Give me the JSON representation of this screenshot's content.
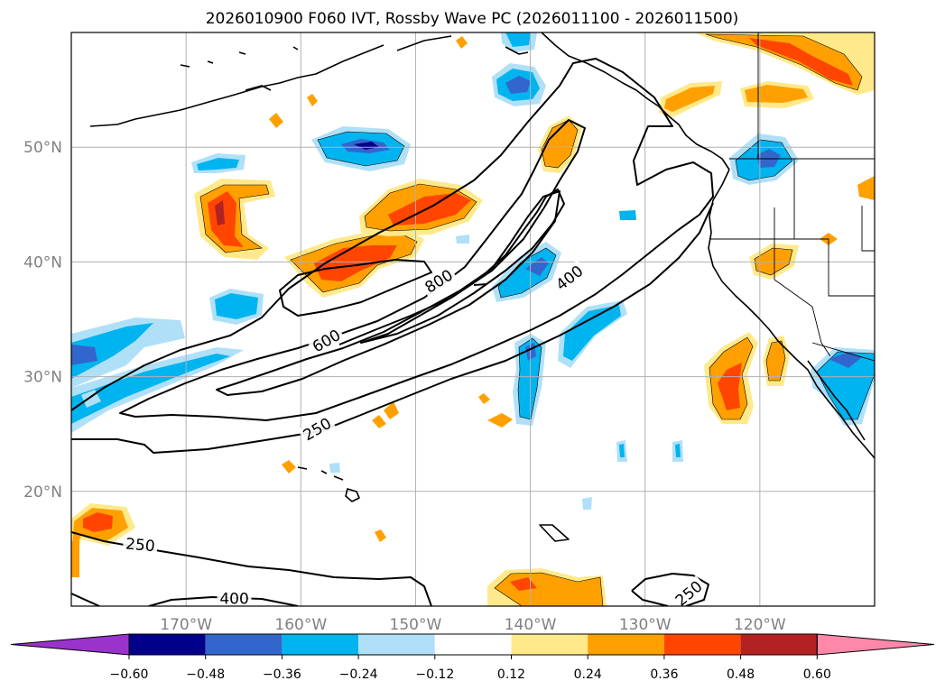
{
  "title": "2026010900 F060 IVT, Rossby Wave PC (2026011100 - 2026011500)",
  "map": {
    "lon_range": [
      -180,
      -110
    ],
    "lat_range": [
      10,
      60
    ],
    "lon_ticks": [
      {
        "lon": -170,
        "label": "170°W"
      },
      {
        "lon": -160,
        "label": "160°W"
      },
      {
        "lon": -150,
        "label": "150°W"
      },
      {
        "lon": -140,
        "label": "140°W"
      },
      {
        "lon": -130,
        "label": "130°W"
      },
      {
        "lon": -120,
        "label": "120°W"
      }
    ],
    "lat_ticks": [
      {
        "lat": 50,
        "label": "50°N"
      },
      {
        "lat": 40,
        "label": "40°N"
      },
      {
        "lat": 30,
        "label": "30°N"
      },
      {
        "lat": 20,
        "label": "20°N"
      }
    ],
    "grid": true
  },
  "ivt_contours": {
    "levels": [
      250,
      400,
      600,
      800
    ],
    "labels": [
      {
        "text": "800",
        "lon": -147.9,
        "lat": 38.2,
        "angle": -32
      },
      {
        "text": "600",
        "lon": -157.7,
        "lat": 33.0,
        "angle": -30
      },
      {
        "text": "400",
        "lon": -136.5,
        "lat": 38.5,
        "angle": -38
      },
      {
        "text": "250",
        "lon": -158.5,
        "lat": 25.3,
        "angle": -30
      },
      {
        "text": "250",
        "lon": -174.0,
        "lat": 15.2,
        "angle": 5
      },
      {
        "text": "400",
        "lon": -165.8,
        "lat": 10.5,
        "angle": 0
      },
      {
        "text": "250",
        "lon": -126.1,
        "lat": 11.0,
        "angle": -40
      }
    ]
  },
  "colorbar": {
    "ticks": [
      "−0.60",
      "−0.48",
      "−0.36",
      "−0.24",
      "−0.12",
      "0.12",
      "0.24",
      "0.36",
      "0.48",
      "0.60"
    ],
    "extend_min_color": "#9933cc",
    "extend_max_color": "#ff88aa",
    "colors": [
      "#00008b",
      "#3366cc",
      "#00b4f0",
      "#b0e0f8",
      "#ffffff",
      "#ffe98a",
      "#ffa000",
      "#ff4500",
      "#b22222"
    ]
  }
}
